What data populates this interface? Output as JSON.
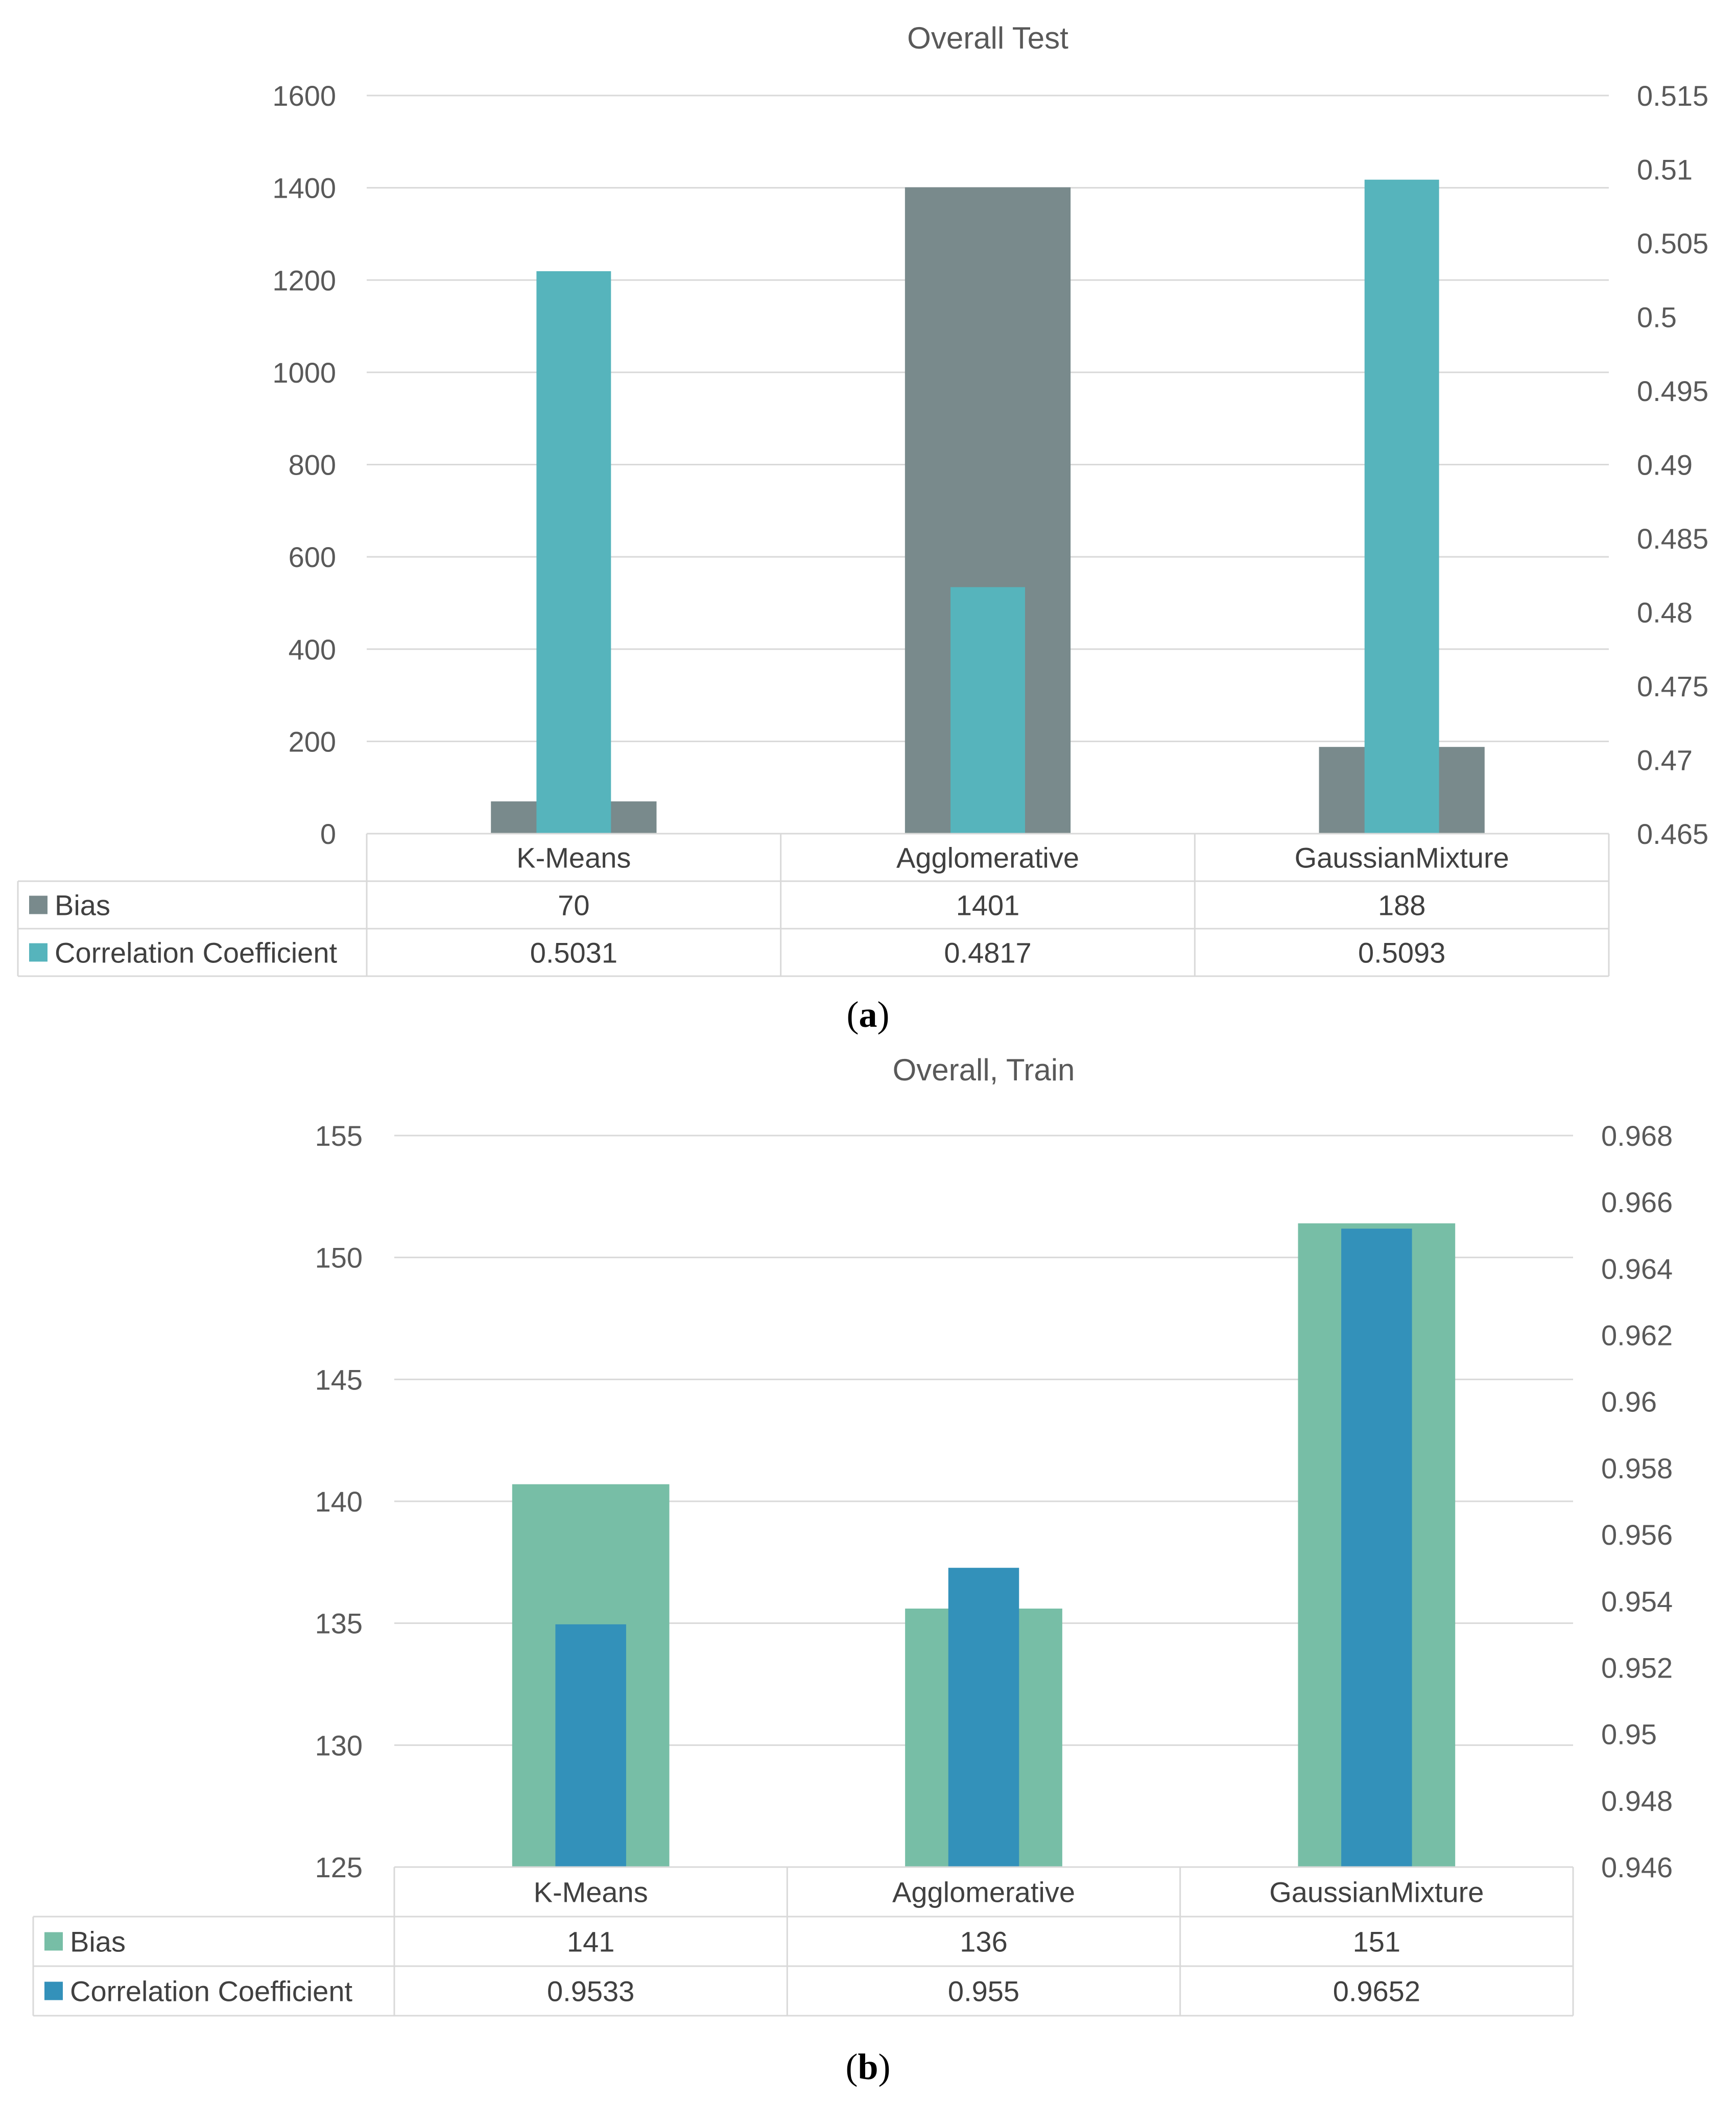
{
  "chart_data": [
    {
      "type": "bar",
      "title": "Overall Test",
      "categories": [
        "K-Means",
        "Agglomerative",
        "GaussianMixture"
      ],
      "series": [
        {
          "name": "Bias",
          "values": [
            70,
            1401,
            188
          ],
          "labels": [
            "70",
            "1401",
            "188"
          ],
          "color": "#798a8c",
          "axis": "left"
        },
        {
          "name": "Correlation Coefficient",
          "values": [
            0.5031,
            0.4817,
            0.5093
          ],
          "labels": [
            "0.5031",
            "0.4817",
            "0.5093"
          ],
          "color": "#56b4bc",
          "axis": "right"
        }
      ],
      "y_left": {
        "min": 0,
        "max": 1600,
        "ticks": [
          "0",
          "200",
          "400",
          "600",
          "800",
          "1000",
          "1200",
          "1400",
          "1600"
        ]
      },
      "y_right": {
        "min": 0.465,
        "max": 0.515,
        "ticks": [
          "0.465",
          "0.47",
          "0.475",
          "0.48",
          "0.485",
          "0.49",
          "0.495",
          "0.5",
          "0.505",
          "0.51",
          "0.515"
        ]
      },
      "grid": true,
      "legend": "data-table",
      "caption": "(a)"
    },
    {
      "type": "bar",
      "title": "Overall, Train",
      "categories": [
        "K-Means",
        "Agglomerative",
        "GaussianMixture"
      ],
      "series": [
        {
          "name": "Bias",
          "values": [
            140.7,
            135.6,
            151.4
          ],
          "labels": [
            "141",
            "136",
            "151"
          ],
          "color": "#77bea6",
          "axis": "left"
        },
        {
          "name": "Correlation Coefficient",
          "values": [
            0.9533,
            0.955,
            0.9652
          ],
          "labels": [
            "0.9533",
            "0.955",
            "0.9652"
          ],
          "color": "#3391ba",
          "axis": "right"
        }
      ],
      "y_left": {
        "min": 125,
        "max": 155,
        "ticks": [
          "125",
          "130",
          "135",
          "140",
          "145",
          "150",
          "155"
        ]
      },
      "y_right": {
        "min": 0.946,
        "max": 0.968,
        "ticks": [
          "0.946",
          "0.948",
          "0.95",
          "0.952",
          "0.954",
          "0.956",
          "0.958",
          "0.96",
          "0.962",
          "0.964",
          "0.966",
          "0.968"
        ]
      },
      "grid": true,
      "legend": "data-table",
      "caption": "(b)"
    }
  ]
}
